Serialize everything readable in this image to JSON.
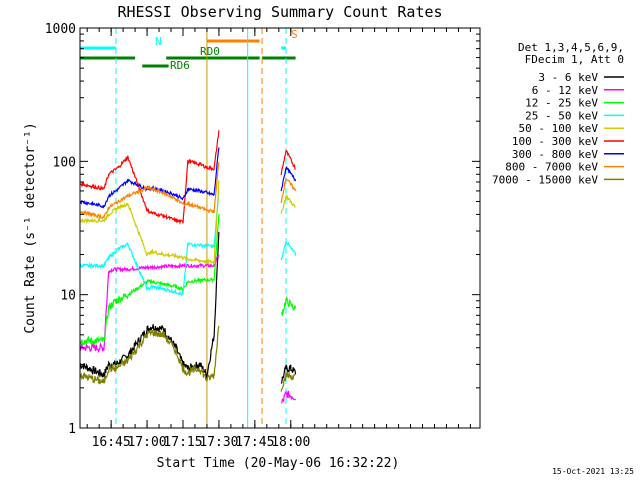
{
  "chart_data": {
    "type": "line",
    "title": "RHESSI Observing Summary Count Rates",
    "xlabel": "Start Time (20-May-06 16:32:22)",
    "ylabel": "Count Rate (s⁻¹ detector⁻¹)",
    "y_scale": "log",
    "ylim": [
      1,
      1000
    ],
    "xlim_min": [
      0,
      167
    ],
    "yticks": [
      "1",
      "10",
      "100",
      "1000"
    ],
    "xticks": [
      {
        "t": 13,
        "label": "16:45"
      },
      {
        "t": 28,
        "label": "17:00"
      },
      {
        "t": 43,
        "label": "17:15"
      },
      {
        "t": 58,
        "label": "17:30"
      },
      {
        "t": 73,
        "label": "17:45"
      },
      {
        "t": 88,
        "label": "18:00"
      }
    ],
    "legend_position": "right",
    "legend_header": [
      "Det 1,3,4,5,6,9,",
      "FDecim 1, Att 0"
    ],
    "stamp": "15-Oct-2021 13:25",
    "series": [
      {
        "name": "3 - 6 keV",
        "color": "#000000",
        "x": [
          0,
          10,
          12,
          15,
          20,
          28,
          30,
          35,
          40,
          43,
          45,
          50,
          53,
          56,
          58,
          72,
          84,
          86,
          88,
          90
        ],
        "y": [
          3.0,
          2.5,
          3.0,
          3.0,
          3.5,
          5.5,
          5.8,
          5.5,
          4.0,
          3.0,
          2.8,
          3.0,
          2.5,
          5.0,
          30,
          null,
          2.2,
          2.8,
          2.8,
          2.6
        ]
      },
      {
        "name": "6 - 12 keV",
        "color": "#ff00ff",
        "x": [
          0,
          10,
          12,
          14,
          20,
          28,
          43,
          56,
          58,
          72,
          84,
          86,
          90
        ],
        "y": [
          4.0,
          4.0,
          15,
          15.5,
          15.5,
          16,
          16.5,
          16.5,
          20,
          null,
          1.5,
          1.8,
          1.7
        ]
      },
      {
        "name": "12 - 25 keV",
        "color": "#00ff00",
        "x": [
          0,
          10,
          12,
          15,
          20,
          28,
          30,
          35,
          40,
          43,
          45,
          50,
          56,
          58,
          72,
          84,
          86,
          90
        ],
        "y": [
          4.5,
          4.5,
          8,
          9,
          10,
          12.5,
          12.5,
          12,
          11.5,
          11,
          12.5,
          12.8,
          13,
          40,
          null,
          7,
          9,
          7.8
        ]
      },
      {
        "name": "25 - 50 keV",
        "color": "#00ffff",
        "x": [
          0,
          10,
          12,
          16,
          20,
          28,
          30,
          35,
          40,
          43,
          45,
          50,
          56,
          58,
          72,
          84,
          86,
          90
        ],
        "y": [
          16.5,
          16.5,
          19,
          22,
          24,
          11,
          11.5,
          11,
          10.5,
          10,
          24,
          23.5,
          23,
          60,
          null,
          18,
          25,
          20
        ]
      },
      {
        "name": "50 - 100 keV",
        "color": "#cccc00",
        "x": [
          0,
          10,
          12,
          16,
          20,
          28,
          30,
          35,
          40,
          43,
          45,
          50,
          56,
          58,
          72,
          84,
          86,
          90
        ],
        "y": [
          36,
          36,
          40,
          45,
          48,
          20,
          21,
          20,
          19.5,
          19,
          18.5,
          18,
          17.5,
          70,
          null,
          40,
          55,
          45
        ]
      },
      {
        "name": "100 - 300 keV",
        "color": "#ff0000",
        "x": [
          0,
          5,
          10,
          12,
          16,
          20,
          28,
          30,
          35,
          40,
          43,
          45,
          50,
          53,
          56,
          58,
          72,
          84,
          86,
          90
        ],
        "y": [
          68,
          65,
          62,
          80,
          90,
          108,
          43,
          41,
          39,
          36,
          35,
          100,
          95,
          90,
          88,
          170,
          null,
          80,
          120,
          88
        ]
      },
      {
        "name": "300 - 800 keV",
        "color": "#0000ff",
        "x": [
          0,
          5,
          10,
          12,
          16,
          20,
          28,
          30,
          35,
          40,
          43,
          45,
          50,
          53,
          56,
          58,
          72,
          84,
          86,
          90
        ],
        "y": [
          50,
          48,
          46,
          55,
          62,
          72,
          62,
          63,
          60,
          56,
          52,
          62,
          60,
          58,
          56,
          130,
          null,
          60,
          90,
          72
        ]
      },
      {
        "name": "800 - 7000 keV",
        "color": "#ff8000",
        "x": [
          0,
          5,
          10,
          12,
          16,
          20,
          28,
          30,
          35,
          40,
          43,
          45,
          50,
          53,
          56,
          58,
          72,
          84,
          86,
          90
        ],
        "y": [
          42,
          40,
          38,
          45,
          50,
          55,
          63,
          62,
          58,
          52,
          48,
          48,
          45,
          43,
          42,
          100,
          null,
          50,
          75,
          60
        ]
      },
      {
        "name": "7000 - 15000 keV",
        "color": "#808000",
        "x": [
          0,
          10,
          12,
          15,
          20,
          28,
          30,
          35,
          40,
          43,
          45,
          50,
          53,
          56,
          58,
          72,
          84,
          86,
          90
        ],
        "y": [
          2.5,
          2.2,
          2.8,
          2.8,
          3.2,
          5.0,
          5.2,
          5.0,
          3.8,
          2.8,
          2.6,
          2.8,
          2.3,
          2.5,
          6,
          null,
          2.0,
          2.5,
          2.4
        ]
      }
    ],
    "flag_lines": [
      {
        "label": "N",
        "color": "#00ffff",
        "segments": [
          [
            0,
            15
          ],
          [
            84,
            86
          ]
        ]
      },
      {
        "label": "RD0",
        "color": "#008000",
        "segments": [
          [
            0,
            23
          ],
          [
            36,
            75
          ],
          [
            76,
            90
          ]
        ]
      },
      {
        "label": "RD6",
        "color": "#008000",
        "segments": [
          [
            26,
            37
          ]
        ]
      },
      {
        "label": "S",
        "color": "#ff8000",
        "segments": [
          [
            53,
            75
          ]
        ]
      }
    ],
    "vertical_markers": [
      {
        "t": 15,
        "color": "#00ffff",
        "style": "dashed"
      },
      {
        "t": 53,
        "color": "#cc9900",
        "style": "solid"
      },
      {
        "t": 70,
        "color": "#00ffff",
        "style": "solid"
      },
      {
        "t": 76,
        "color": "#ff8000",
        "style": "dashed"
      },
      {
        "t": 86,
        "color": "#00ffff",
        "style": "dashed"
      }
    ]
  }
}
